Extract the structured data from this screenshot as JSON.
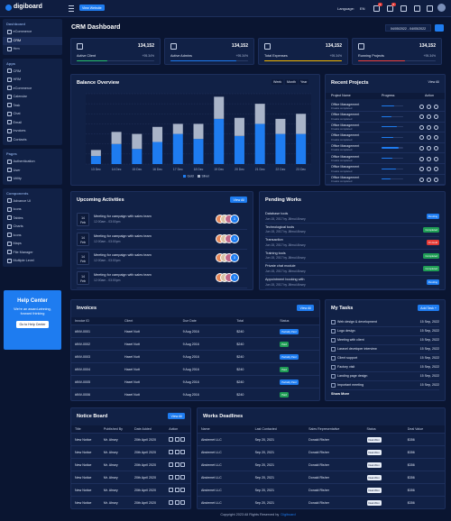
{
  "brand": "digiboard",
  "topbar": {
    "view_website": "View Website",
    "language_label": "Language:",
    "language": "EN",
    "notification_counts": [
      "3",
      "5"
    ]
  },
  "sidebar": {
    "sections": [
      {
        "title": "Dashboard",
        "items": [
          "eCommerce",
          "CRM",
          "Hrm"
        ]
      },
      {
        "title": "Apps",
        "items": [
          "CRM",
          "HRM",
          "eCommerce",
          "Calendar",
          "Task",
          "Chat",
          "Email",
          "Invoices",
          "Contacts"
        ]
      },
      {
        "title": "Pages",
        "items": [
          "Authentication",
          "User",
          "Utility"
        ]
      },
      {
        "title": "Components",
        "items": [
          "Advance UI",
          "Icons",
          "Tables",
          "Charts",
          "Icons",
          "Maps",
          "File Manager",
          "Multiple Level"
        ]
      }
    ],
    "help_center": {
      "title": "Help Center",
      "text": "We're an award-winning, forward thinking",
      "button": "Go to Help Center"
    }
  },
  "header": {
    "title": "CRM Dashboard",
    "date_range": "04/05/2022 - 04/05/2022"
  },
  "stats": [
    {
      "label": "Active Client",
      "value": "134,152",
      "change": "+95.34%",
      "progress": 40,
      "color": "#27c26c"
    },
    {
      "label": "Active Admins",
      "value": "134,152",
      "change": "+95.34%",
      "progress": 85,
      "color": "#1e7cf0"
    },
    {
      "label": "Total Expenses",
      "value": "134,152",
      "change": "+95.34%",
      "progress": 100,
      "color": "#f5b800"
    },
    {
      "label": "Running Projects",
      "value": "134,152",
      "change": "+95.34%",
      "progress": 60,
      "color": "#f0413e"
    }
  ],
  "balance_overview": {
    "title": "Balance Overview",
    "tabs": [
      "Week",
      "Month",
      "Year"
    ],
    "chart": {
      "type": "bar",
      "categories": [
        "13 Dec",
        "14 Dec",
        "15 Dec",
        "16 Dec",
        "17 Dec",
        "18 Dec",
        "19 Dec",
        "20 Dec",
        "21 Dec",
        "22 Dec",
        "23 Dec"
      ],
      "series": [
        {
          "name": "Gold",
          "color": "#1e7cf0",
          "values": [
            8,
            20,
            15,
            22,
            30,
            25,
            45,
            28,
            40,
            30,
            30
          ]
        },
        {
          "name": "Silver",
          "color": "#a9b4c8",
          "values": [
            6,
            12,
            15,
            15,
            10,
            15,
            22,
            18,
            20,
            15,
            20
          ]
        }
      ],
      "ylim": [
        0,
        70
      ],
      "yticks": [
        0,
        10,
        20,
        30,
        40,
        50,
        60,
        70
      ],
      "grid": true
    }
  },
  "recent_projects": {
    "title": "Recent Projects",
    "view_all": "View All",
    "columns": [
      "Project Name",
      "Progress",
      "Action"
    ],
    "rows": [
      {
        "name": "Office Management",
        "tasks": "0 tasks completed",
        "progress": 60
      },
      {
        "name": "Office Management",
        "tasks": "0 tasks completed",
        "progress": 45
      },
      {
        "name": "Office Management",
        "tasks": "0 tasks completed",
        "progress": 70
      },
      {
        "name": "Office Management",
        "tasks": "0 tasks completed",
        "progress": 55
      },
      {
        "name": "Office Management",
        "tasks": "0 tasks completed",
        "progress": 80
      },
      {
        "name": "Office Management",
        "tasks": "0 tasks completed",
        "progress": 50
      },
      {
        "name": "Office Management",
        "tasks": "0 tasks completed",
        "progress": 65
      },
      {
        "name": "Office Management",
        "tasks": "0 tasks completed",
        "progress": 40
      }
    ]
  },
  "upcoming_activities": {
    "title": "Upcoming Activities",
    "view_all": "View All",
    "items": [
      {
        "day": "14",
        "month": "Feb",
        "title": "Meeting for campaign with sales team",
        "time": "12:00am - 03:00pm",
        "more": "3"
      },
      {
        "day": "14",
        "month": "Feb",
        "title": "Meeting for campaign with sales team",
        "time": "12:00am - 03:00pm",
        "more": "3"
      },
      {
        "day": "14",
        "month": "Feb",
        "title": "Meeting for campaign with sales team",
        "time": "12:00am - 03:00pm",
        "more": "3"
      },
      {
        "day": "14",
        "month": "Feb",
        "title": "Meeting for campaign with sales team",
        "time": "12:00am - 03:00pm",
        "more": "3"
      }
    ]
  },
  "pending_works": {
    "title": "Pending Works",
    "items": [
      {
        "title": "Database tools",
        "meta": "Jun 15, 2017 by Jiilmul Ahsey",
        "status": {
          "text": "Pending",
          "color": "#1e7cf0"
        }
      },
      {
        "title": "Technological tools",
        "meta": "Jun 15, 2017 by Jiilmul Ahsey",
        "status": {
          "text": "Completed",
          "color": "#1f9d55"
        }
      },
      {
        "title": "Transaction",
        "meta": "Jun 15, 2017 by Jiilmul Ahsey",
        "status": {
          "text": "On Hold",
          "color": "#e53935"
        }
      },
      {
        "title": "Training tools",
        "meta": "Jun 15, 2017 by Jiilmul Ahsey",
        "status": {
          "text": "Completed",
          "color": "#1f9d55"
        }
      },
      {
        "title": "Private chat module",
        "meta": "Jun 15, 2017 by Jiilmul Ahsey",
        "status": {
          "text": "Completed",
          "color": "#1f9d55"
        }
      },
      {
        "title": "Appointment booking with",
        "meta": "Jun 15, 2017 by Jiilmul Ahsey",
        "status": {
          "text": "Pending",
          "color": "#1e7cf0"
        }
      }
    ]
  },
  "invoices": {
    "title": "Invoices",
    "view_all": "View All",
    "columns": [
      "Invoice ID",
      "Client",
      "Due Date",
      "Total",
      "Status"
    ],
    "rows": [
      {
        "id": "#INV-0001",
        "client": "Haxel Nutt",
        "due": "9 Aug 2016",
        "total": "$240",
        "status": {
          "text": "Partially Paid",
          "color": "#1e7cf0"
        }
      },
      {
        "id": "#INV-0002",
        "client": "Haxel Nutt",
        "due": "9 Aug 2016",
        "total": "$240",
        "status": {
          "text": "Paid",
          "color": "#1f9d55"
        }
      },
      {
        "id": "#INV-0003",
        "client": "Haxel Nutt",
        "due": "9 Aug 2016",
        "total": "$240",
        "status": {
          "text": "Partially Paid",
          "color": "#1e7cf0"
        }
      },
      {
        "id": "#INV-0004",
        "client": "Haxel Nutt",
        "due": "9 Aug 2016",
        "total": "$240",
        "status": {
          "text": "Paid",
          "color": "#1f9d55"
        }
      },
      {
        "id": "#INV-0005",
        "client": "Haxel Nutt",
        "due": "9 Aug 2016",
        "total": "$240",
        "status": {
          "text": "Partially Paid",
          "color": "#1e7cf0"
        }
      },
      {
        "id": "#INV-0006",
        "client": "Haxel Nutt",
        "due": "9 Aug 2016",
        "total": "$240",
        "status": {
          "text": "Paid",
          "color": "#1f9d55"
        }
      }
    ]
  },
  "my_tasks": {
    "title": "My Tasks",
    "add": "Add Task +",
    "items": [
      {
        "text": "Web design & development",
        "date": "15 Sep, 2022"
      },
      {
        "text": "Logo design",
        "date": "15 Sep, 2022"
      },
      {
        "text": "Meeting with client",
        "date": "15 Sep, 2022"
      },
      {
        "text": "Laravel developer interview",
        "date": "15 Sep, 2022"
      },
      {
        "text": "Client support",
        "date": "15 Sep, 2022"
      },
      {
        "text": "Factory visit",
        "date": "15 Sep, 2022"
      },
      {
        "text": "Landing page design",
        "date": "15 Sep, 2022"
      },
      {
        "text": "Important meeting",
        "date": "15 Sep, 2022"
      }
    ],
    "show_more": "Show More"
  },
  "notice_board": {
    "title": "Notice Board",
    "view_all": "View All",
    "columns": [
      "Title",
      "Published By",
      "Date Added",
      "Action"
    ],
    "rows": [
      {
        "title": "New Notice",
        "by": "Mr. Ahsey",
        "date": "20th April 2020"
      },
      {
        "title": "New Notice",
        "by": "Mr. Ahsey",
        "date": "20th April 2020"
      },
      {
        "title": "New Notice",
        "by": "Mr. Ahsey",
        "date": "20th April 2020"
      },
      {
        "title": "New Notice",
        "by": "Mr. Ahsey",
        "date": "20th April 2020"
      },
      {
        "title": "New Notice",
        "by": "Mr. Ahsey",
        "date": "20th April 2020"
      },
      {
        "title": "New Notice",
        "by": "Mr. Ahsey",
        "date": "20th April 2020"
      }
    ]
  },
  "works_deadlines": {
    "title": "Works Deadlines",
    "columns": [
      "Name",
      "Last Contacted",
      "Sales Representative",
      "Status",
      "Deal Value"
    ],
    "rows": [
      {
        "name": "Abstemet LLC",
        "contacted": "Sep 20, 2021",
        "rep": "Donald Risher",
        "status": "Deal Won",
        "value": "$356"
      },
      {
        "name": "Abstemet LLC",
        "contacted": "Sep 20, 2021",
        "rep": "Donald Risher",
        "status": "Deal Won",
        "value": "$356"
      },
      {
        "name": "Abstemet LLC",
        "contacted": "Sep 20, 2021",
        "rep": "Donald Risher",
        "status": "Deal Won",
        "value": "$356"
      },
      {
        "name": "Abstemet LLC",
        "contacted": "Sep 20, 2021",
        "rep": "Donald Risher",
        "status": "Deal Won",
        "value": "$356"
      },
      {
        "name": "Abstemet LLC",
        "contacted": "Sep 20, 2021",
        "rep": "Donald Risher",
        "status": "Deal Won",
        "value": "$356"
      },
      {
        "name": "Abstemet LLC",
        "contacted": "Sep 20, 2021",
        "rep": "Donald Risher",
        "status": "Deal Won",
        "value": "$356"
      }
    ]
  },
  "footer": {
    "text": "Copyright 2023 All Rights Reserved by",
    "brand": "Digiboard"
  }
}
